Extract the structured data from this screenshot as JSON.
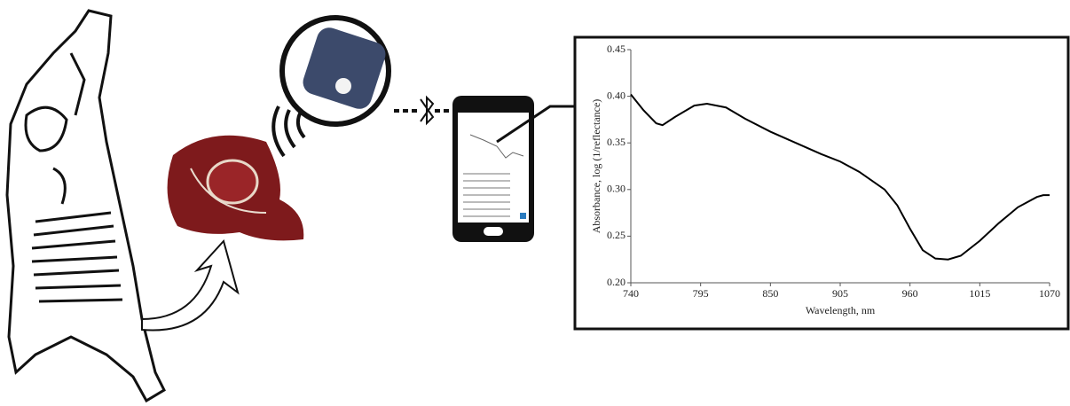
{
  "chart_data": {
    "type": "line",
    "xlabel": "Wavelength, nm",
    "ylabel": "Absorbance, log (1/reflectance)",
    "x": [
      740,
      750,
      760,
      765,
      775,
      790,
      800,
      815,
      830,
      850,
      870,
      890,
      905,
      920,
      940,
      950,
      960,
      970,
      980,
      990,
      1000,
      1015,
      1030,
      1045,
      1060,
      1065,
      1070
    ],
    "values": [
      0.402,
      0.385,
      0.371,
      0.369,
      0.378,
      0.39,
      0.392,
      0.388,
      0.376,
      0.362,
      0.35,
      0.338,
      0.33,
      0.319,
      0.3,
      0.283,
      0.258,
      0.235,
      0.226,
      0.225,
      0.229,
      0.245,
      0.264,
      0.281,
      0.292,
      0.294,
      0.294
    ],
    "color": "#000000",
    "xlim": [
      740,
      1070
    ],
    "xticks": [
      740,
      795,
      850,
      905,
      960,
      1015,
      1070
    ],
    "ylim": [
      0.2,
      0.45
    ],
    "yticks": [
      {
        "value": 0.2,
        "label": "0.20"
      },
      0.25,
      {
        "value": 0.3,
        "label": "0.30"
      },
      0.35,
      {
        "value": 0.4,
        "label": "0.40"
      },
      0.45
    ],
    "grid": false
  }
}
